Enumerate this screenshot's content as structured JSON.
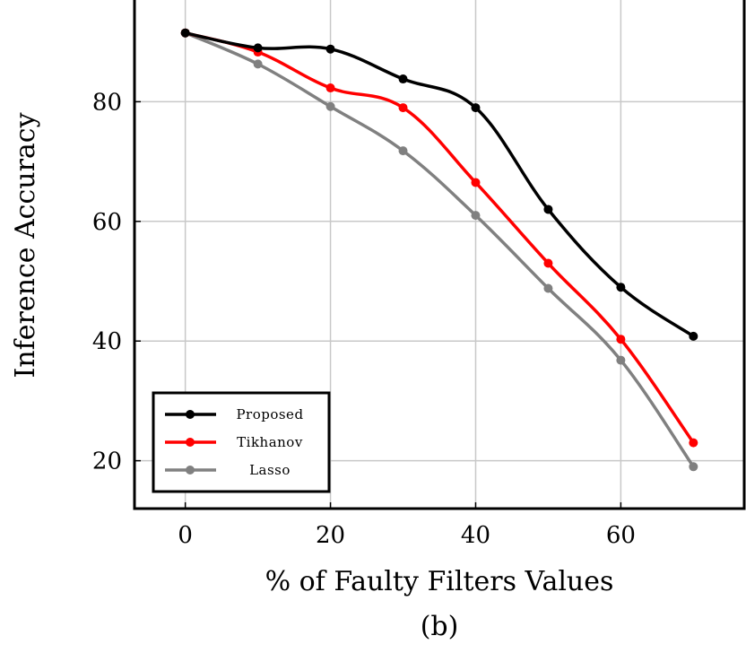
{
  "chart_data": {
    "type": "line",
    "xlabel": "% of Faulty Filters Values",
    "ylabel": "Inference Accuracy",
    "caption": "(b)",
    "x": [
      0,
      10,
      20,
      30,
      40,
      50,
      60,
      70
    ],
    "xlim": [
      -7,
      77
    ],
    "ylim": [
      12,
      97
    ],
    "xticks": [
      0,
      20,
      40,
      60
    ],
    "yticks": [
      20,
      40,
      60,
      80
    ],
    "grid": true,
    "legend_position": "bottom-left",
    "series": [
      {
        "name": "Proposed",
        "color": "#000000",
        "values": [
          91.5,
          89,
          88.8,
          83.8,
          79,
          62,
          49,
          40.8
        ]
      },
      {
        "name": "Tikhanov",
        "color": "#ff0000",
        "values": [
          91.5,
          88.3,
          82.3,
          79,
          66.5,
          53,
          40.3,
          23
        ]
      },
      {
        "name": "Lasso",
        "color": "#808080",
        "values": [
          91.5,
          86.3,
          79.2,
          71.8,
          61,
          48.8,
          36.8,
          19
        ]
      }
    ]
  }
}
